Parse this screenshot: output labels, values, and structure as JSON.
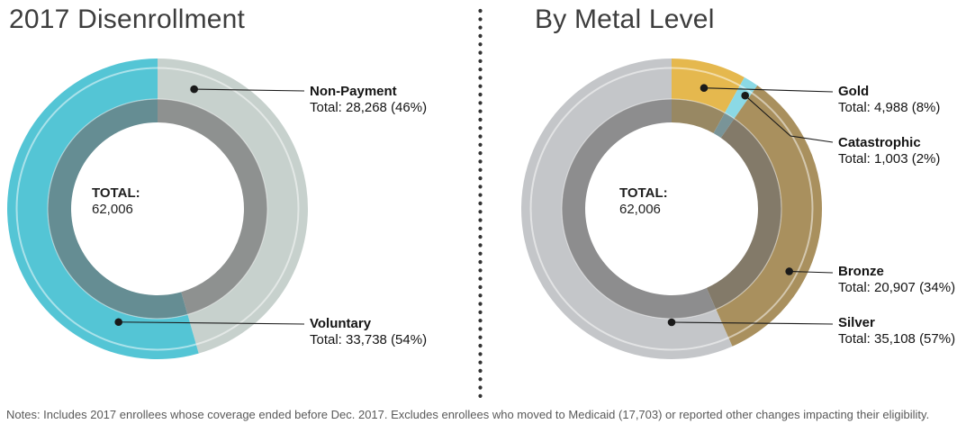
{
  "page": {
    "notes": "Notes: Includes 2017 enrollees whose coverage ended before Dec. 2017. Excludes enrollees who moved to Medicaid (17,703) or reported other changes impacting their eligibility."
  },
  "chart_data": [
    {
      "type": "pie",
      "title": "2017 Disenrollment",
      "donut": true,
      "total": 62006,
      "center_label": {
        "title": "TOTAL:",
        "value": "62,006"
      },
      "layout": {
        "labels": "leader-lines-right",
        "start_angle": "top",
        "direction": "clockwise"
      },
      "series": [
        {
          "name": "Non-Payment",
          "value": 28268,
          "percent": 46,
          "label": "Total: 28,268 (46%)",
          "color": "#C7D1CD"
        },
        {
          "name": "Voluntary",
          "value": 33738,
          "percent": 54,
          "label": "Total: 33,738 (54%)",
          "color": "#54C5D5"
        }
      ]
    },
    {
      "type": "pie",
      "title": "By Metal Level",
      "donut": true,
      "total": 62006,
      "center_label": {
        "title": "TOTAL:",
        "value": "62,006"
      },
      "layout": {
        "labels": "leader-lines-right",
        "start_angle": "top",
        "direction": "clockwise"
      },
      "series": [
        {
          "name": "Gold",
          "value": 4988,
          "percent": 8,
          "label": "Total: 4,988 (8%)",
          "color": "#E5B84E"
        },
        {
          "name": "Catastrophic",
          "value": 1003,
          "percent": 2,
          "label": "Total: 1,003 (2%)",
          "color": "#8BD9E5"
        },
        {
          "name": "Bronze",
          "value": 20907,
          "percent": 34,
          "label": "Total: 20,907 (34%)",
          "color": "#A9905E"
        },
        {
          "name": "Silver",
          "value": 35108,
          "percent": 57,
          "label": "Total: 35,108 (57%)",
          "color": "#C4C6C9"
        }
      ]
    }
  ]
}
